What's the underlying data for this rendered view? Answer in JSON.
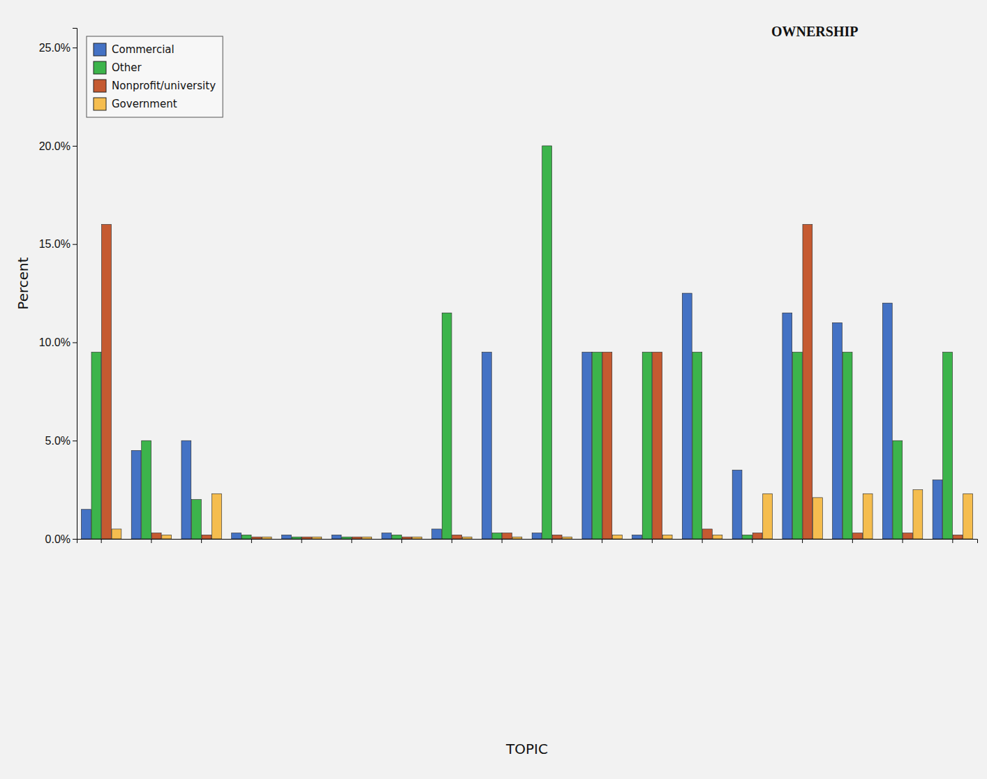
{
  "chart_data": {
    "type": "bar",
    "title": "OWNERSHIP",
    "x_label": "TOPIC",
    "y_label": "Percent",
    "categories": [
      null,
      null,
      null,
      null,
      null,
      null,
      null,
      null,
      null,
      null,
      null,
      null,
      null,
      null,
      null,
      null,
      null,
      null
    ],
    "series": [
      {
        "name": "Commercial",
        "color": "#4472c4",
        "values": [
          1.5,
          4.5,
          5,
          0.3,
          0.2,
          0.2,
          0.3,
          0.5,
          9.5,
          0.3,
          9.5,
          0.2,
          12.5,
          3.5,
          11.5,
          11,
          12,
          3
        ]
      },
      {
        "name": "Other",
        "color": "#3cb44b",
        "values": [
          9.5,
          5,
          2,
          0.2,
          0.1,
          0.1,
          0.2,
          11.5,
          0.3,
          20,
          9.5,
          9.5,
          9.5,
          0.2,
          9.5,
          9.5,
          5,
          9.5
        ]
      },
      {
        "name": "Nonprofit/university",
        "color": "#c55a31",
        "values": [
          16,
          0.3,
          0.2,
          0.1,
          0.1,
          0.1,
          0.1,
          0.2,
          0.3,
          0.2,
          9.5,
          9.5,
          0.5,
          0.3,
          16,
          0.3,
          0.3,
          0.2
        ]
      },
      {
        "name": "Government",
        "color": "#f5bd4f",
        "values": [
          0.5,
          0.2,
          2.3,
          0.1,
          0.1,
          0.1,
          0.1,
          0.1,
          0.1,
          0.1,
          0.2,
          0.2,
          0.2,
          2.3,
          2.1,
          2.3,
          2.5,
          2.3
        ]
      }
    ],
    "ylim": [
      0,
      26
    ],
    "yticks": [
      {
        "value": 0,
        "label": "0.0%"
      },
      {
        "value": 5,
        "label": "5.0%"
      },
      {
        "value": 10,
        "label": "10.0%"
      },
      {
        "value": 15,
        "label": "15.0%"
      },
      {
        "value": 20,
        "label": "20.0%"
      },
      {
        "value": 25,
        "label": "25.0%"
      }
    ],
    "grid": false,
    "legend": "top-left"
  }
}
